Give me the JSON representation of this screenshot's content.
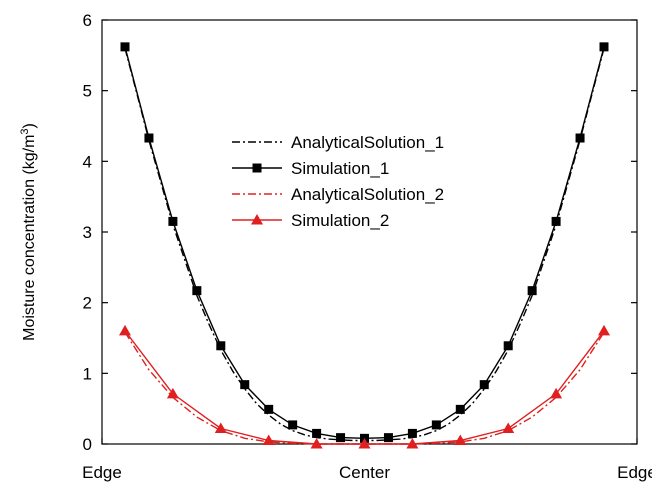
{
  "chart_data": {
    "type": "line",
    "title": "",
    "xlabel": "",
    "ylabel": "Moisture concentration (kg/m",
    "ylabel_superscript": "3",
    "ylabel_close": ")",
    "ylim": [
      0,
      6
    ],
    "yticks": [
      "0",
      "1",
      "2",
      "3",
      "4",
      "5",
      "6"
    ],
    "xlim": [
      -1.1,
      1.1
    ],
    "xtick_labels": [
      {
        "x": -1.1,
        "label": "Edge"
      },
      {
        "x": 0,
        "label": "Center"
      },
      {
        "x": 1.1,
        "label": "Edge"
      }
    ],
    "legend": {
      "position": "center"
    },
    "series": [
      {
        "name": "AnalyticalSolution_1",
        "color": "#000000",
        "dash": "8,3,2,3",
        "marker": "none",
        "x": [
          -1,
          -0.95,
          -0.9,
          -0.85,
          -0.8,
          -0.75,
          -0.7,
          -0.65,
          -0.6,
          -0.55,
          -0.5,
          -0.45,
          -0.4,
          -0.35,
          -0.3,
          -0.25,
          -0.2,
          -0.15,
          -0.1,
          -0.05,
          0,
          0.05,
          0.1,
          0.15,
          0.2,
          0.25,
          0.3,
          0.35,
          0.4,
          0.45,
          0.5,
          0.55,
          0.6,
          0.65,
          0.7,
          0.75,
          0.8,
          0.85,
          0.9,
          0.95,
          1
        ],
        "values": [
          5.6,
          4.95,
          4.3,
          3.7,
          3.1,
          2.6,
          2.1,
          1.7,
          1.33,
          1.03,
          0.78,
          0.57,
          0.41,
          0.28,
          0.19,
          0.13,
          0.09,
          0.07,
          0.06,
          0.05,
          0.05,
          0.05,
          0.06,
          0.07,
          0.09,
          0.13,
          0.19,
          0.28,
          0.41,
          0.57,
          0.78,
          1.03,
          1.33,
          1.7,
          2.1,
          2.6,
          3.1,
          3.7,
          4.3,
          4.95,
          5.6
        ]
      },
      {
        "name": "Simulation_1",
        "color": "#000000",
        "dash": "",
        "marker": "square",
        "x": [
          -1,
          -0.9,
          -0.8,
          -0.7,
          -0.6,
          -0.5,
          -0.4,
          -0.3,
          -0.2,
          -0.1,
          0,
          0.1,
          0.2,
          0.3,
          0.4,
          0.5,
          0.6,
          0.7,
          0.8,
          0.9,
          1
        ],
        "values": [
          5.62,
          4.33,
          3.15,
          2.17,
          1.39,
          0.84,
          0.49,
          0.27,
          0.15,
          0.09,
          0.08,
          0.09,
          0.15,
          0.27,
          0.49,
          0.84,
          1.39,
          2.17,
          3.15,
          4.33,
          5.62
        ]
      },
      {
        "name": "AnalyticalSolution_2",
        "color": "#e02020",
        "dash": "8,3,2,3",
        "marker": "none",
        "x": [
          -1,
          -0.9,
          -0.8,
          -0.7,
          -0.6,
          -0.5,
          -0.4,
          -0.3,
          -0.2,
          -0.1,
          0,
          0.1,
          0.2,
          0.3,
          0.4,
          0.5,
          0.6,
          0.7,
          0.8,
          0.9,
          1
        ],
        "values": [
          1.58,
          1.05,
          0.66,
          0.38,
          0.19,
          0.08,
          0.03,
          0.01,
          0.0,
          0.0,
          0.0,
          0.0,
          0.0,
          0.01,
          0.03,
          0.08,
          0.19,
          0.38,
          0.66,
          1.05,
          1.58
        ]
      },
      {
        "name": "Simulation_2",
        "color": "#e02020",
        "dash": "",
        "marker": "triangle",
        "x": [
          -1,
          -0.8,
          -0.6,
          -0.4,
          -0.2,
          0,
          0.2,
          0.4,
          0.6,
          0.8,
          1
        ],
        "values": [
          1.6,
          0.71,
          0.22,
          0.05,
          0.0,
          0.0,
          0.0,
          0.05,
          0.22,
          0.71,
          1.6
        ]
      }
    ]
  }
}
